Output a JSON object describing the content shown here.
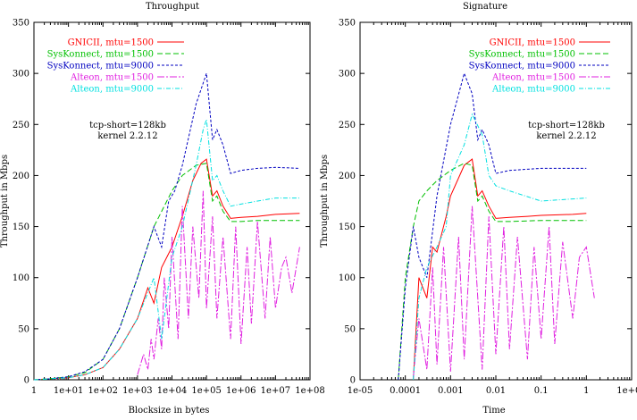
{
  "chart_data": [
    {
      "type": "line",
      "title": "Throughput",
      "xlabel": "Blocksize in bytes",
      "ylabel": "Throughput in Mbps",
      "xscale": "log",
      "xlim": [
        1,
        100000000
      ],
      "ylim": [
        0,
        350
      ],
      "x_tick_labels": [
        "1",
        "1e+01",
        "1e+02",
        "1e+03",
        "1e+04",
        "1e+05",
        "1e+06",
        "1e+07",
        "1e+08"
      ],
      "y_tick_labels": [
        "0",
        "50",
        "100",
        "150",
        "200",
        "250",
        "300",
        "350"
      ],
      "annotation": [
        "tcp-short=128kb",
        "kernel 2.2.12"
      ],
      "legend_position": "top-right",
      "series": [
        {
          "name": "GNICII, mtu=1500",
          "color": "#ff0000",
          "dash": "solid",
          "x": [
            1,
            3,
            10,
            30,
            100,
            300,
            1000,
            2000,
            3000,
            5000,
            10000,
            20000,
            40000,
            70000,
            100000,
            150000,
            200000,
            300000,
            500000,
            1000000,
            3000000,
            10000000,
            50000000
          ],
          "y": [
            0,
            1,
            2,
            5,
            12,
            30,
            60,
            90,
            75,
            110,
            130,
            160,
            195,
            212,
            216,
            180,
            185,
            170,
            158,
            159,
            160,
            162,
            163
          ]
        },
        {
          "name": "SysKonnect, mtu=1500",
          "color": "#00c000",
          "dash": "6,3",
          "x": [
            1,
            3,
            10,
            30,
            100,
            300,
            1000,
            3000,
            10000,
            20000,
            50000,
            100000,
            150000,
            200000,
            300000,
            500000,
            1000000,
            3000000,
            10000000,
            50000000
          ],
          "y": [
            0,
            1,
            3,
            7,
            20,
            50,
            100,
            150,
            185,
            200,
            210,
            212,
            175,
            180,
            165,
            155,
            155,
            156,
            156,
            156
          ]
        },
        {
          "name": "SysKonnect, mtu=9000",
          "color": "#0000c0",
          "dash": "3,2",
          "x": [
            1,
            3,
            10,
            30,
            100,
            300,
            1000,
            3000,
            5000,
            8000,
            12000,
            20000,
            50000,
            100000,
            150000,
            200000,
            300000,
            500000,
            1000000,
            3000000,
            10000000,
            50000000
          ],
          "y": [
            0,
            1,
            3,
            8,
            20,
            50,
            100,
            150,
            130,
            175,
            185,
            210,
            270,
            300,
            235,
            245,
            230,
            202,
            205,
            207,
            208,
            207
          ]
        },
        {
          "name": "Alteon, mtu=1500",
          "color": "#e020e0",
          "dash": "8,2,2,2",
          "x": [
            1000,
            1500,
            2000,
            2500,
            3000,
            4000,
            5000,
            6000,
            8000,
            10000,
            15000,
            20000,
            30000,
            40000,
            60000,
            80000,
            100000,
            150000,
            200000,
            300000,
            500000,
            700000,
            1000000,
            1500000,
            2000000,
            3000000,
            5000000,
            7000000,
            10000000,
            15000000,
            20000000,
            30000000,
            50000000
          ],
          "y": [
            5,
            25,
            10,
            40,
            20,
            60,
            30,
            100,
            50,
            140,
            40,
            170,
            60,
            150,
            80,
            185,
            70,
            160,
            60,
            140,
            40,
            150,
            35,
            130,
            55,
            155,
            60,
            140,
            70,
            110,
            120,
            85,
            130
          ]
        },
        {
          "name": "Alteon, mtu=9000",
          "color": "#00e0e0",
          "dash": "5,2,1,2",
          "x": [
            1,
            3,
            10,
            30,
            100,
            300,
            1000,
            3000,
            5000,
            10000,
            20000,
            50000,
            80000,
            100000,
            150000,
            200000,
            300000,
            500000,
            1000000,
            3000000,
            10000000,
            50000000
          ],
          "y": [
            0,
            1,
            2,
            5,
            12,
            30,
            60,
            100,
            40,
            120,
            150,
            210,
            245,
            255,
            195,
            200,
            185,
            170,
            172,
            175,
            178,
            178
          ]
        }
      ]
    },
    {
      "type": "line",
      "title": "Signature",
      "xlabel": "Time",
      "ylabel": "Throughput in Mbps",
      "xscale": "log",
      "xlim": [
        1e-05,
        10
      ],
      "ylim": [
        0,
        350
      ],
      "x_tick_labels": [
        "1e-05",
        "0.0001",
        "0.001",
        "0.01",
        "0.1",
        "1",
        "1e+01"
      ],
      "y_tick_labels": [
        "0",
        "50",
        "100",
        "150",
        "200",
        "250",
        "300",
        "350"
      ],
      "annotation": [
        "tcp-short=128kb",
        "kernel 2.2.12"
      ],
      "legend_position": "top-right",
      "series": [
        {
          "name": "GNICII, mtu=1500",
          "color": "#ff0000",
          "dash": "solid",
          "x": [
            0.00015,
            0.0002,
            0.0003,
            0.0004,
            0.0005,
            0.0008,
            0.001,
            0.002,
            0.003,
            0.004,
            0.005,
            0.007,
            0.01,
            0.02,
            0.05,
            0.1,
            0.5,
            1
          ],
          "y": [
            0,
            100,
            80,
            130,
            125,
            160,
            180,
            210,
            216,
            180,
            185,
            170,
            158,
            159,
            160,
            161,
            162,
            163
          ]
        },
        {
          "name": "SysKonnect, mtu=1500",
          "color": "#00c000",
          "dash": "6,3",
          "x": [
            7e-05,
            0.0001,
            0.00015,
            0.0002,
            0.0003,
            0.0005,
            0.001,
            0.002,
            0.003,
            0.004,
            0.005,
            0.007,
            0.01,
            0.02,
            0.1,
            1
          ],
          "y": [
            0,
            100,
            150,
            175,
            185,
            195,
            205,
            212,
            210,
            175,
            180,
            165,
            155,
            155,
            156,
            156
          ]
        },
        {
          "name": "SysKonnect, mtu=9000",
          "color": "#0000c0",
          "dash": "3,2",
          "x": [
            7e-05,
            0.0001,
            0.00015,
            0.0002,
            0.0003,
            0.0005,
            0.001,
            0.002,
            0.003,
            0.004,
            0.005,
            0.007,
            0.01,
            0.02,
            0.1,
            1
          ],
          "y": [
            0,
            90,
            150,
            120,
            100,
            180,
            250,
            300,
            280,
            235,
            245,
            230,
            202,
            205,
            207,
            207
          ]
        },
        {
          "name": "Alteon, mtu=1500",
          "color": "#e020e0",
          "dash": "8,2,2,2",
          "x": [
            0.00015,
            0.0002,
            0.0003,
            0.0004,
            0.0005,
            0.0007,
            0.001,
            0.0015,
            0.002,
            0.003,
            0.005,
            0.007,
            0.01,
            0.015,
            0.02,
            0.03,
            0.05,
            0.07,
            0.1,
            0.15,
            0.2,
            0.3,
            0.5,
            0.7,
            1,
            1.5
          ],
          "y": [
            2,
            60,
            10,
            110,
            15,
            130,
            8,
            140,
            20,
            170,
            10,
            160,
            25,
            150,
            30,
            140,
            20,
            130,
            40,
            150,
            35,
            135,
            60,
            120,
            130,
            80
          ]
        },
        {
          "name": "Alteon, mtu=9000",
          "color": "#00e0e0",
          "dash": "5,2,1,2",
          "x": [
            0.00015,
            0.0002,
            0.0003,
            0.0005,
            0.0008,
            0.001,
            0.002,
            0.003,
            0.005,
            0.007,
            0.01,
            0.02,
            0.1,
            1
          ],
          "y": [
            0,
            80,
            110,
            130,
            150,
            200,
            230,
            260,
            240,
            200,
            190,
            185,
            175,
            178
          ]
        }
      ]
    }
  ]
}
